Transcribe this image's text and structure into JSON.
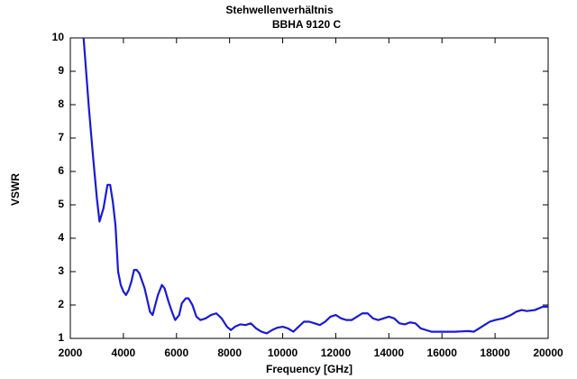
{
  "chart_data": {
    "type": "line",
    "title": "Stehwellenverhältnis",
    "subtitle": "BBHA 9120 C",
    "x_label": "Frequency [GHz]",
    "y_label": "VSWR",
    "xlim": [
      2000,
      20000
    ],
    "ylim": [
      1,
      10
    ],
    "xticks": [
      2000,
      4000,
      6000,
      8000,
      10000,
      12000,
      14000,
      16000,
      18000,
      20000
    ],
    "yticks": [
      1,
      2,
      3,
      4,
      5,
      6,
      7,
      8,
      9,
      10
    ],
    "grid": false,
    "series": [
      {
        "name": "VSWR",
        "color": "#1a1ad8",
        "x": [
          2500,
          2700,
          2850,
          3000,
          3100,
          3250,
          3400,
          3500,
          3600,
          3700,
          3800,
          3900,
          4000,
          4100,
          4200,
          4300,
          4400,
          4500,
          4600,
          4800,
          5000,
          5100,
          5300,
          5450,
          5550,
          5700,
          5850,
          5950,
          6100,
          6200,
          6350,
          6450,
          6600,
          6750,
          6900,
          7100,
          7300,
          7500,
          7700,
          7900,
          8050,
          8200,
          8400,
          8600,
          8800,
          9000,
          9200,
          9400,
          9600,
          9800,
          10000,
          10200,
          10400,
          10600,
          10800,
          11000,
          11200,
          11400,
          11600,
          11800,
          12000,
          12200,
          12400,
          12600,
          12800,
          13000,
          13200,
          13400,
          13600,
          13800,
          14000,
          14200,
          14400,
          14600,
          14800,
          15000,
          15200,
          15400,
          15600,
          15800,
          16000,
          16500,
          17000,
          17200,
          17400,
          17600,
          17800,
          18000,
          18300,
          18600,
          18800,
          19000,
          19200,
          19500,
          19800,
          20000
        ],
        "values": [
          10,
          7.9,
          6.5,
          5.2,
          4.5,
          4.9,
          5.6,
          5.6,
          5.1,
          4.4,
          3.0,
          2.6,
          2.4,
          2.3,
          2.45,
          2.7,
          3.05,
          3.05,
          2.95,
          2.5,
          1.8,
          1.7,
          2.3,
          2.6,
          2.5,
          2.1,
          1.75,
          1.55,
          1.7,
          2.05,
          2.2,
          2.2,
          2.0,
          1.65,
          1.55,
          1.6,
          1.7,
          1.75,
          1.6,
          1.35,
          1.25,
          1.35,
          1.42,
          1.4,
          1.45,
          1.3,
          1.2,
          1.15,
          1.25,
          1.32,
          1.35,
          1.3,
          1.2,
          1.35,
          1.5,
          1.5,
          1.45,
          1.4,
          1.5,
          1.65,
          1.7,
          1.6,
          1.55,
          1.55,
          1.65,
          1.75,
          1.75,
          1.6,
          1.55,
          1.6,
          1.65,
          1.6,
          1.45,
          1.42,
          1.48,
          1.45,
          1.3,
          1.25,
          1.2,
          1.2,
          1.2,
          1.2,
          1.22,
          1.2,
          1.3,
          1.4,
          1.5,
          1.55,
          1.6,
          1.7,
          1.8,
          1.85,
          1.82,
          1.85,
          1.95,
          1.95
        ]
      }
    ]
  }
}
